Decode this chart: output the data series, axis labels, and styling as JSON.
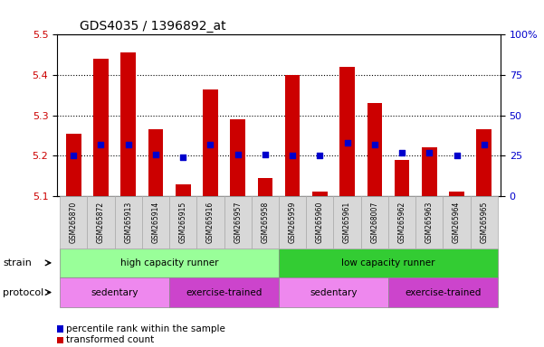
{
  "title": "GDS4035 / 1396892_at",
  "samples": [
    "GSM265870",
    "GSM265872",
    "GSM265913",
    "GSM265914",
    "GSM265915",
    "GSM265916",
    "GSM265957",
    "GSM265958",
    "GSM265959",
    "GSM265960",
    "GSM265961",
    "GSM268007",
    "GSM265962",
    "GSM265963",
    "GSM265964",
    "GSM265965"
  ],
  "bar_values": [
    5.255,
    5.44,
    5.455,
    5.265,
    5.13,
    5.365,
    5.29,
    5.145,
    5.4,
    5.11,
    5.42,
    5.33,
    5.19,
    5.22,
    5.11,
    5.265
  ],
  "percentile_values": [
    25,
    32,
    32,
    26,
    24,
    32,
    26,
    26,
    25,
    25,
    33,
    32,
    27,
    27,
    25,
    32
  ],
  "ylim_left": [
    5.1,
    5.5
  ],
  "ylim_right": [
    0,
    100
  ],
  "bar_color": "#cc0000",
  "percentile_color": "#0000cc",
  "bar_baseline": 5.1,
  "strain_labels": [
    {
      "label": "high capacity runner",
      "start": 0,
      "end": 8,
      "color": "#99ff99"
    },
    {
      "label": "low capacity runner",
      "start": 8,
      "end": 16,
      "color": "#33cc33"
    }
  ],
  "protocol_labels": [
    {
      "label": "sedentary",
      "start": 0,
      "end": 4,
      "color": "#ee88ee"
    },
    {
      "label": "exercise-trained",
      "start": 4,
      "end": 8,
      "color": "#cc44cc"
    },
    {
      "label": "sedentary",
      "start": 8,
      "end": 12,
      "color": "#ee88ee"
    },
    {
      "label": "exercise-trained",
      "start": 12,
      "end": 16,
      "color": "#cc44cc"
    }
  ],
  "legend_items": [
    {
      "label": "transformed count",
      "color": "#cc0000"
    },
    {
      "label": "percentile rank within the sample",
      "color": "#0000cc"
    }
  ],
  "grid_yticks_left": [
    5.1,
    5.2,
    5.3,
    5.4,
    5.5
  ],
  "grid_yticks_right": [
    0,
    25,
    50,
    75,
    100
  ],
  "xtick_gridline_values": [
    5.2,
    5.3,
    5.4
  ],
  "background_color": "#ffffff",
  "strain_row_label": "strain",
  "protocol_row_label": "protocol",
  "xtick_bg_color": "#d8d8d8",
  "xtick_border_color": "#aaaaaa"
}
